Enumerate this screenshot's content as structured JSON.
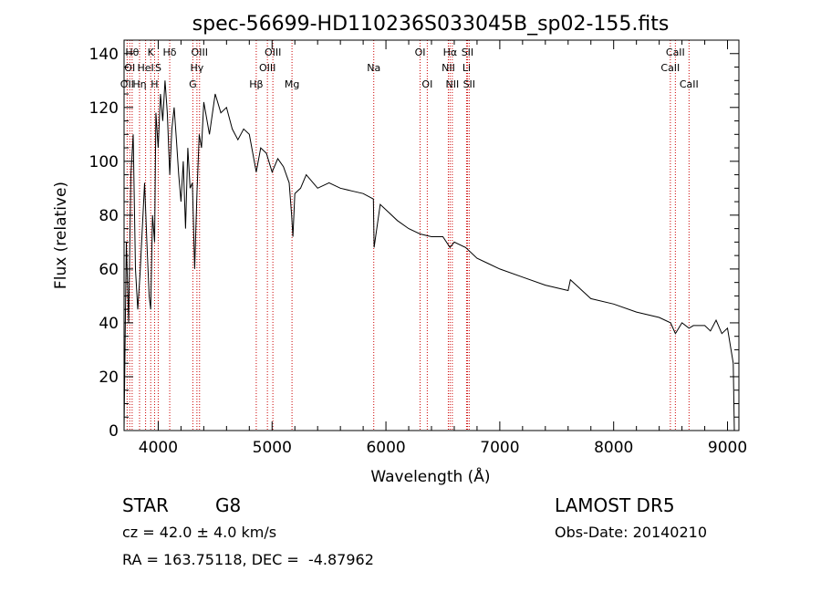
{
  "chart_data": {
    "type": "line",
    "title": "spec-56699-HD110236S033045B_sp02-155.fits",
    "xlabel": "Wavelength (Å)",
    "ylabel": "Flux (relative)",
    "xlim": [
      3700,
      9100
    ],
    "ylim": [
      0,
      145
    ],
    "xticks": [
      4000,
      5000,
      6000,
      7000,
      8000,
      9000
    ],
    "yticks": [
      0,
      20,
      40,
      60,
      80,
      100,
      120,
      140
    ],
    "grid": false,
    "series": [
      {
        "x": [
          3700,
          3710,
          3720,
          3740,
          3760,
          3780,
          3800,
          3820,
          3840,
          3860,
          3880,
          3900,
          3920,
          3934,
          3950,
          3968,
          3980,
          4000,
          4020,
          4040,
          4060,
          4080,
          4101,
          4120,
          4140,
          4160,
          4180,
          4200,
          4220,
          4240,
          4260,
          4280,
          4300,
          4320,
          4340,
          4360,
          4380,
          4400,
          4450,
          4500,
          4550,
          4600,
          4650,
          4700,
          4750,
          4800,
          4861,
          4900,
          4950,
          5000,
          5050,
          5100,
          5150,
          5172,
          5183,
          5200,
          5250,
          5300,
          5400,
          5500,
          5600,
          5700,
          5800,
          5890,
          5896,
          5950,
          6000,
          6100,
          6200,
          6300,
          6400,
          6500,
          6563,
          6600,
          6700,
          6800,
          6900,
          7000,
          7200,
          7400,
          7600,
          7620,
          7800,
          8000,
          8200,
          8400,
          8500,
          8542,
          8600,
          8662,
          8700,
          8800,
          8850,
          8900,
          8950,
          9000,
          9050,
          9060
        ],
        "y": [
          0,
          35,
          70,
          40,
          95,
          110,
          60,
          45,
          58,
          75,
          92,
          70,
          50,
          45,
          80,
          70,
          118,
          105,
          125,
          115,
          130,
          118,
          95,
          112,
          120,
          108,
          95,
          85,
          100,
          75,
          105,
          90,
          92,
          60,
          88,
          110,
          105,
          122,
          110,
          125,
          118,
          120,
          112,
          108,
          112,
          110,
          96,
          105,
          103,
          96,
          101,
          98,
          92,
          80,
          72,
          88,
          90,
          95,
          90,
          92,
          90,
          89,
          88,
          86,
          68,
          84,
          82,
          78,
          75,
          73,
          72,
          72,
          68,
          70,
          68,
          64,
          62,
          60,
          57,
          54,
          52,
          56,
          49,
          47,
          44,
          42,
          40,
          36,
          40,
          38,
          39,
          39,
          37,
          41,
          36,
          38,
          25,
          0
        ]
      }
    ],
    "lines": [
      {
        "x": 3727,
        "label": "OII",
        "row": 2
      },
      {
        "x": 3750,
        "label": "OI",
        "row": 1
      },
      {
        "x": 3771,
        "label": "Hθ",
        "row": 0
      },
      {
        "x": 3836,
        "label": "Hη",
        "row": 2
      },
      {
        "x": 3889,
        "label": "HeI",
        "row": 1
      },
      {
        "x": 3934,
        "label": "K",
        "row": 0
      },
      {
        "x": 3968,
        "label": "H",
        "row": 2
      },
      {
        "x": 4000,
        "label": "S",
        "row": 1
      },
      {
        "x": 4101,
        "label": "Hδ",
        "row": 0
      },
      {
        "x": 4304,
        "label": "G",
        "row": 2
      },
      {
        "x": 4340,
        "label": "Hγ",
        "row": 1
      },
      {
        "x": 4363,
        "label": "OIII",
        "row": 0
      },
      {
        "x": 4861,
        "label": "Hβ",
        "row": 2
      },
      {
        "x": 4959,
        "label": "OIII",
        "row": 1
      },
      {
        "x": 5007,
        "label": "OIII",
        "row": 0
      },
      {
        "x": 5175,
        "label": "Mg",
        "row": 2
      },
      {
        "x": 5893,
        "label": "Na",
        "row": 1
      },
      {
        "x": 6300,
        "label": "OI",
        "row": 0
      },
      {
        "x": 6363,
        "label": "OI",
        "row": 2
      },
      {
        "x": 6548,
        "label": "NII",
        "row": 1
      },
      {
        "x": 6563,
        "label": "Hα",
        "row": 0
      },
      {
        "x": 6583,
        "label": "NII",
        "row": 2
      },
      {
        "x": 6708,
        "label": "Li",
        "row": 1
      },
      {
        "x": 6716,
        "label": "SII",
        "row": 0
      },
      {
        "x": 6731,
        "label": "SII",
        "row": 2
      },
      {
        "x": 8498,
        "label": "CaII",
        "row": 1
      },
      {
        "x": 8542,
        "label": "CaII",
        "row": 0
      },
      {
        "x": 8662,
        "label": "CaII",
        "row": 2
      }
    ]
  },
  "info": {
    "class": "STAR",
    "subclass": "G8",
    "cz": "cz = 42.0 ± 4.0 km/s",
    "coords": "RA = 163.75118, DEC =  -4.87962",
    "survey": "LAMOST DR5",
    "obs_date": "Obs-Date: 20140210"
  },
  "colors": {
    "spectrum": "#000000",
    "line_marker": "#cc0000",
    "axes": "#000000"
  }
}
